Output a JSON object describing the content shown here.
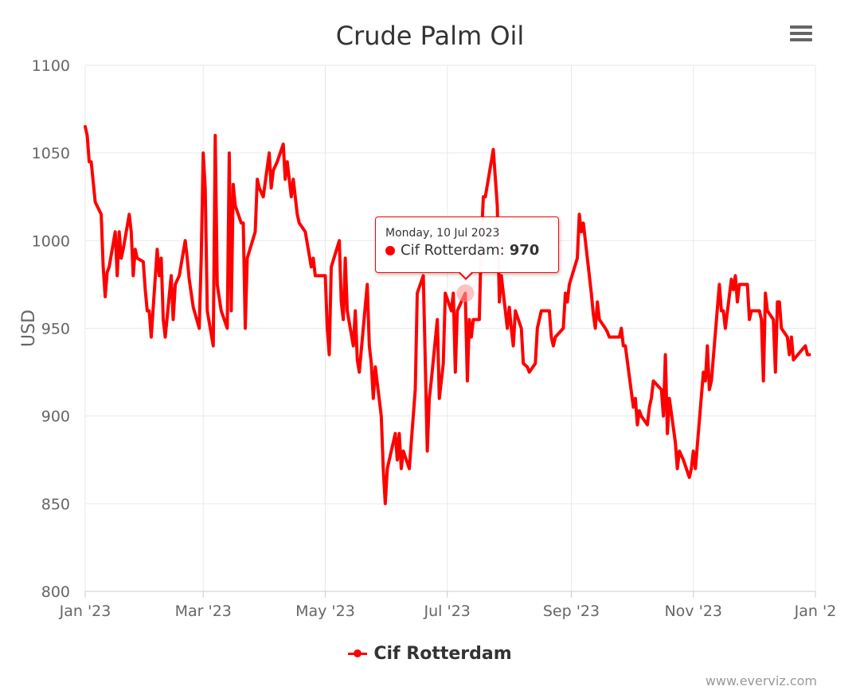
{
  "chart_data": {
    "type": "line",
    "title": "Crude Palm Oil",
    "ylabel": "USD",
    "xlabel": "",
    "ylim": [
      800,
      1100
    ],
    "yticks": [
      800,
      850,
      900,
      950,
      1000,
      1050,
      1100
    ],
    "xlim": [
      "2023-01-01",
      "2024-01-01"
    ],
    "xticks": [
      {
        "date": "2023-01-01",
        "label": "Jan '23"
      },
      {
        "date": "2023-03-01",
        "label": "Mar '23"
      },
      {
        "date": "2023-05-01",
        "label": "May '23"
      },
      {
        "date": "2023-07-01",
        "label": "Jul '23"
      },
      {
        "date": "2023-09-01",
        "label": "Sep '23"
      },
      {
        "date": "2023-11-01",
        "label": "Nov '23"
      },
      {
        "date": "2024-01-01",
        "label": "Jan '2"
      }
    ],
    "grid": true,
    "legend": "bottom-center",
    "series": [
      {
        "name": "Cif Rotterdam",
        "color": "#ff0000",
        "points": [
          [
            "2023-01-01",
            1065
          ],
          [
            "2023-01-02",
            1060
          ],
          [
            "2023-01-03",
            1045
          ],
          [
            "2023-01-04",
            1045
          ],
          [
            "2023-01-06",
            1022
          ],
          [
            "2023-01-09",
            1015
          ],
          [
            "2023-01-10",
            985
          ],
          [
            "2023-01-11",
            968
          ],
          [
            "2023-01-12",
            982
          ],
          [
            "2023-01-13",
            985
          ],
          [
            "2023-01-16",
            1005
          ],
          [
            "2023-01-17",
            980
          ],
          [
            "2023-01-18",
            1005
          ],
          [
            "2023-01-19",
            990
          ],
          [
            "2023-01-20",
            995
          ],
          [
            "2023-01-23",
            1015
          ],
          [
            "2023-01-24",
            1005
          ],
          [
            "2023-01-25",
            980
          ],
          [
            "2023-01-26",
            995
          ],
          [
            "2023-01-27",
            990
          ],
          [
            "2023-01-30",
            988
          ],
          [
            "2023-01-31",
            972
          ],
          [
            "2023-02-01",
            960
          ],
          [
            "2023-02-02",
            960
          ],
          [
            "2023-02-03",
            945
          ],
          [
            "2023-02-06",
            995
          ],
          [
            "2023-02-07",
            980
          ],
          [
            "2023-02-08",
            990
          ],
          [
            "2023-02-09",
            955
          ],
          [
            "2023-02-10",
            945
          ],
          [
            "2023-02-13",
            980
          ],
          [
            "2023-02-14",
            955
          ],
          [
            "2023-02-15",
            975
          ],
          [
            "2023-02-17",
            980
          ],
          [
            "2023-02-20",
            1000
          ],
          [
            "2023-02-21",
            990
          ],
          [
            "2023-02-22",
            978
          ],
          [
            "2023-02-24",
            962
          ],
          [
            "2023-02-27",
            950
          ],
          [
            "2023-02-28",
            990
          ],
          [
            "2023-03-01",
            1050
          ],
          [
            "2023-03-02",
            1030
          ],
          [
            "2023-03-03",
            960
          ],
          [
            "2023-03-06",
            940
          ],
          [
            "2023-03-07",
            1060
          ],
          [
            "2023-03-08",
            975
          ],
          [
            "2023-03-10",
            960
          ],
          [
            "2023-03-13",
            950
          ],
          [
            "2023-03-14",
            1050
          ],
          [
            "2023-03-15",
            960
          ],
          [
            "2023-03-16",
            1032
          ],
          [
            "2023-03-17",
            1020
          ],
          [
            "2023-03-20",
            1010
          ],
          [
            "2023-03-21",
            1010
          ],
          [
            "2023-03-22",
            950
          ],
          [
            "2023-03-23",
            990
          ],
          [
            "2023-03-27",
            1005
          ],
          [
            "2023-03-28",
            1035
          ],
          [
            "2023-03-29",
            1030
          ],
          [
            "2023-03-31",
            1025
          ],
          [
            "2023-04-03",
            1050
          ],
          [
            "2023-04-04",
            1030
          ],
          [
            "2023-04-05",
            1040
          ],
          [
            "2023-04-07",
            1045
          ],
          [
            "2023-04-10",
            1055
          ],
          [
            "2023-04-11",
            1035
          ],
          [
            "2023-04-12",
            1045
          ],
          [
            "2023-04-14",
            1025
          ],
          [
            "2023-04-15",
            1035
          ],
          [
            "2023-04-17",
            1015
          ],
          [
            "2023-04-18",
            1010
          ],
          [
            "2023-04-21",
            1005
          ],
          [
            "2023-04-24",
            985
          ],
          [
            "2023-04-25",
            990
          ],
          [
            "2023-04-26",
            980
          ],
          [
            "2023-04-28",
            980
          ],
          [
            "2023-05-01",
            980
          ],
          [
            "2023-05-02",
            950
          ],
          [
            "2023-05-03",
            935
          ],
          [
            "2023-05-04",
            985
          ],
          [
            "2023-05-08",
            1000
          ],
          [
            "2023-05-09",
            965
          ],
          [
            "2023-05-10",
            955
          ],
          [
            "2023-05-11",
            990
          ],
          [
            "2023-05-12",
            960
          ],
          [
            "2023-05-15",
            940
          ],
          [
            "2023-05-16",
            960
          ],
          [
            "2023-05-17",
            932
          ],
          [
            "2023-05-18",
            925
          ],
          [
            "2023-05-22",
            975
          ],
          [
            "2023-05-23",
            940
          ],
          [
            "2023-05-24",
            930
          ],
          [
            "2023-05-25",
            910
          ],
          [
            "2023-05-26",
            928
          ],
          [
            "2023-05-29",
            900
          ],
          [
            "2023-05-30",
            870
          ],
          [
            "2023-05-31",
            850
          ],
          [
            "2023-06-01",
            870
          ],
          [
            "2023-06-05",
            890
          ],
          [
            "2023-06-06",
            875
          ],
          [
            "2023-06-07",
            890
          ],
          [
            "2023-06-08",
            870
          ],
          [
            "2023-06-09",
            880
          ],
          [
            "2023-06-12",
            870
          ],
          [
            "2023-06-13",
            885
          ],
          [
            "2023-06-15",
            915
          ],
          [
            "2023-06-16",
            970
          ],
          [
            "2023-06-19",
            980
          ],
          [
            "2023-06-20",
            930
          ],
          [
            "2023-06-21",
            880
          ],
          [
            "2023-06-22",
            910
          ],
          [
            "2023-06-23",
            920
          ],
          [
            "2023-06-26",
            955
          ],
          [
            "2023-06-27",
            910
          ],
          [
            "2023-06-28",
            920
          ],
          [
            "2023-06-29",
            930
          ],
          [
            "2023-06-30",
            970
          ],
          [
            "2023-07-03",
            960
          ],
          [
            "2023-07-04",
            970
          ],
          [
            "2023-07-05",
            925
          ],
          [
            "2023-07-06",
            960
          ],
          [
            "2023-07-10",
            970
          ],
          [
            "2023-07-11",
            920
          ],
          [
            "2023-07-12",
            955
          ],
          [
            "2023-07-13",
            945
          ],
          [
            "2023-07-14",
            955
          ],
          [
            "2023-07-17",
            955
          ],
          [
            "2023-07-18",
            1000
          ],
          [
            "2023-07-19",
            1025
          ],
          [
            "2023-07-20",
            1025
          ],
          [
            "2023-07-24",
            1052
          ],
          [
            "2023-07-26",
            1020
          ],
          [
            "2023-07-27",
            965
          ],
          [
            "2023-07-28",
            980
          ],
          [
            "2023-07-31",
            950
          ],
          [
            "2023-08-01",
            962
          ],
          [
            "2023-08-02",
            950
          ],
          [
            "2023-08-03",
            940
          ],
          [
            "2023-08-04",
            960
          ],
          [
            "2023-08-07",
            950
          ],
          [
            "2023-08-08",
            930
          ],
          [
            "2023-08-10",
            928
          ],
          [
            "2023-08-11",
            925
          ],
          [
            "2023-08-14",
            930
          ],
          [
            "2023-08-15",
            950
          ],
          [
            "2023-08-16",
            955
          ],
          [
            "2023-08-17",
            960
          ],
          [
            "2023-08-21",
            960
          ],
          [
            "2023-08-22",
            945
          ],
          [
            "2023-08-23",
            940
          ],
          [
            "2023-08-24",
            945
          ],
          [
            "2023-08-28",
            950
          ],
          [
            "2023-08-29",
            970
          ],
          [
            "2023-08-30",
            965
          ],
          [
            "2023-08-31",
            975
          ],
          [
            "2023-09-04",
            990
          ],
          [
            "2023-09-05",
            1015
          ],
          [
            "2023-09-06",
            1005
          ],
          [
            "2023-09-07",
            1010
          ],
          [
            "2023-09-11",
            970
          ],
          [
            "2023-09-12",
            958
          ],
          [
            "2023-09-13",
            950
          ],
          [
            "2023-09-14",
            965
          ],
          [
            "2023-09-15",
            955
          ],
          [
            "2023-09-18",
            950
          ],
          [
            "2023-09-19",
            948
          ],
          [
            "2023-09-20",
            945
          ],
          [
            "2023-09-25",
            945
          ],
          [
            "2023-09-26",
            950
          ],
          [
            "2023-09-27",
            940
          ],
          [
            "2023-09-28",
            940
          ],
          [
            "2023-10-02",
            905
          ],
          [
            "2023-10-03",
            910
          ],
          [
            "2023-10-04",
            895
          ],
          [
            "2023-10-05",
            903
          ],
          [
            "2023-10-06",
            900
          ],
          [
            "2023-10-09",
            895
          ],
          [
            "2023-10-10",
            905
          ],
          [
            "2023-10-11",
            910
          ],
          [
            "2023-10-12",
            920
          ],
          [
            "2023-10-16",
            915
          ],
          [
            "2023-10-17",
            900
          ],
          [
            "2023-10-18",
            935
          ],
          [
            "2023-10-19",
            890
          ],
          [
            "2023-10-20",
            910
          ],
          [
            "2023-10-23",
            885
          ],
          [
            "2023-10-24",
            870
          ],
          [
            "2023-10-25",
            880
          ],
          [
            "2023-10-27",
            875
          ],
          [
            "2023-10-30",
            865
          ],
          [
            "2023-10-31",
            870
          ],
          [
            "2023-11-01",
            880
          ],
          [
            "2023-11-02",
            870
          ],
          [
            "2023-11-06",
            925
          ],
          [
            "2023-11-07",
            920
          ],
          [
            "2023-11-08",
            940
          ],
          [
            "2023-11-09",
            915
          ],
          [
            "2023-11-10",
            920
          ],
          [
            "2023-11-14",
            975
          ],
          [
            "2023-11-15",
            960
          ],
          [
            "2023-11-16",
            960
          ],
          [
            "2023-11-17",
            950
          ],
          [
            "2023-11-20",
            978
          ],
          [
            "2023-11-21",
            972
          ],
          [
            "2023-11-22",
            980
          ],
          [
            "2023-11-23",
            965
          ],
          [
            "2023-11-24",
            975
          ],
          [
            "2023-11-28",
            975
          ],
          [
            "2023-11-29",
            955
          ],
          [
            "2023-11-30",
            960
          ],
          [
            "2023-12-01",
            960
          ],
          [
            "2023-12-04",
            960
          ],
          [
            "2023-12-05",
            955
          ],
          [
            "2023-12-06",
            920
          ],
          [
            "2023-12-07",
            970
          ],
          [
            "2023-12-08",
            960
          ],
          [
            "2023-12-11",
            955
          ],
          [
            "2023-12-12",
            925
          ],
          [
            "2023-12-13",
            965
          ],
          [
            "2023-12-14",
            965
          ],
          [
            "2023-12-15",
            950
          ],
          [
            "2023-12-18",
            945
          ],
          [
            "2023-12-19",
            935
          ],
          [
            "2023-12-20",
            945
          ],
          [
            "2023-12-21",
            932
          ],
          [
            "2023-12-27",
            940
          ],
          [
            "2023-12-28",
            935
          ],
          [
            "2023-12-29",
            935
          ]
        ]
      }
    ],
    "tooltip": {
      "date_label": "Monday, 10 Jul 2023",
      "series_name": "Cif Rotterdam",
      "value_label": "970",
      "date": "2023-07-10",
      "value": 970
    }
  },
  "ui": {
    "menu_icon": "hamburger-menu-icon",
    "legend_symbol_icon": "line-with-dot-icon",
    "credit": "www.everviz.com"
  }
}
